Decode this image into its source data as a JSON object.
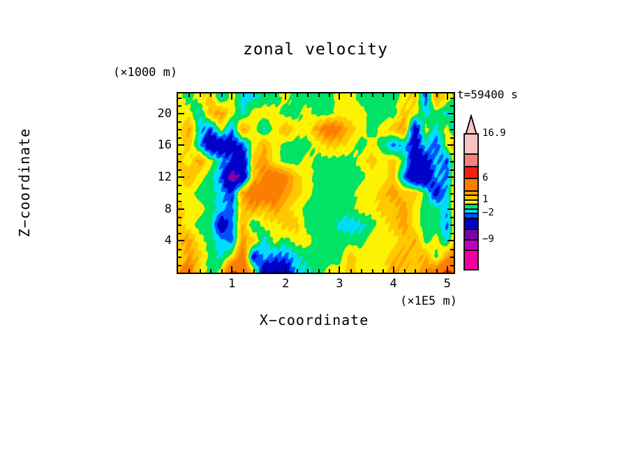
{
  "title": "zonal velocity",
  "time_label": "t=59400 s",
  "x_axis": {
    "label": "X−coordinate",
    "unit": "(×1E5 m)",
    "min": 0,
    "max": 5.12,
    "ticks": [
      1,
      2,
      3,
      4,
      5
    ],
    "tick_labels": [
      "1",
      "2",
      "3",
      "4",
      "5"
    ],
    "minor_step": 0.2
  },
  "z_axis": {
    "label": "Z−coordinate",
    "unit": "(×1000 m)",
    "min": 0,
    "max": 22.5,
    "ticks": [
      4,
      8,
      12,
      16,
      20
    ],
    "tick_labels": [
      "4",
      "8",
      "12",
      "16",
      "20"
    ],
    "minor_step": 1
  },
  "colorbar": {
    "tip_color": "#F9C3C3",
    "segments": [
      {
        "color": "#F9C3C3",
        "h": 29,
        "label": "16.9"
      },
      {
        "color": "#F5837D",
        "h": 18
      },
      {
        "color": "#FA1A10",
        "h": 17
      },
      {
        "color": "#FC7E00",
        "h": 18,
        "label": "6"
      },
      {
        "color": "#FFA000",
        "h": 6
      },
      {
        "color": "#FFC900",
        "h": 7
      },
      {
        "color": "#FCF302",
        "h": 6,
        "label": "1"
      },
      {
        "color": "#00E364",
        "h": 7
      },
      {
        "color": "#00DCFF",
        "h": 6
      },
      {
        "color": "#0050FF",
        "h": 7,
        "label": "−2"
      },
      {
        "color": "#0000C8",
        "h": 16
      },
      {
        "color": "#7D00A8",
        "h": 15
      },
      {
        "color": "#C000C0",
        "h": 15,
        "label": "−9"
      },
      {
        "color": "#F5009F",
        "h": 28
      }
    ]
  },
  "chart_data": {
    "type": "heatmap",
    "title": "zonal velocity",
    "xlabel": "X−coordinate (×1E5 m)",
    "ylabel": "Z−coordinate (×1000 m)",
    "annotation": "t=59400 s",
    "x_range_units": [
      0,
      5.2
    ],
    "z_range_units": [
      0,
      22
    ],
    "level_edges": [
      -12,
      -9,
      -6,
      -3,
      -2,
      -1,
      0,
      1,
      2,
      3,
      6,
      9,
      12,
      16.9
    ],
    "level_colors": [
      "#F5009F",
      "#C000C0",
      "#7D00A8",
      "#0000C8",
      "#0050FF",
      "#00DCFF",
      "#00E364",
      "#FCF302",
      "#FFC900",
      "#FFA000",
      "#FC7E00",
      "#FA1A10",
      "#F5837D",
      "#F9C3C3",
      "#F9C3C3"
    ],
    "value_max_label": 16.9,
    "texture": {
      "amp": 0.5,
      "k1x": 0.55,
      "k1y": 0.33,
      "k2x": 0.021,
      "k2y": 0.013,
      "phase": 1.3,
      "base": 0.25,
      "scale": 0.3
    },
    "grid_rows_top_to_bottom": [
      [
        0.5,
        -0.5,
        0.5,
        1.5,
        -1.3,
        0.5,
        -1.3,
        -1.3,
        -0.5,
        -0.5,
        0.5,
        -0.5,
        -0.5,
        -0.5,
        -0.5,
        0.5,
        0.5,
        -0.5,
        -0.5,
        -0.5,
        -0.5,
        0.5,
        1.5,
        -2.8,
        2.6,
        0.5,
        -0.5
      ],
      [
        0.5,
        0.5,
        -1.3,
        1.8,
        2.6,
        0.5,
        -1.3,
        0.5,
        0.5,
        0.5,
        -0.5,
        -0.5,
        0.5,
        -0.5,
        -0.5,
        0.5,
        0.5,
        0.5,
        -0.5,
        -0.5,
        -0.5,
        1.5,
        0.5,
        -1.3,
        -0.5,
        -1.3,
        -0.5
      ],
      [
        0.5,
        2.6,
        -1.3,
        -2.8,
        0.5,
        -2.4,
        2.6,
        0.5,
        -1.3,
        0.5,
        2.2,
        0.5,
        0.5,
        2.6,
        4.5,
        3.5,
        1.5,
        0.5,
        -0.5,
        0.5,
        1.5,
        2.6,
        -4.5,
        0.5,
        -1.3,
        0.5,
        -2.4
      ],
      [
        0.5,
        1.5,
        -1.6,
        -5,
        -5,
        -4,
        -2.8,
        0.5,
        2.2,
        0.5,
        -0.5,
        -0.5,
        -0.5,
        0.5,
        1.5,
        1.2,
        0.5,
        -0.5,
        0.5,
        -0.5,
        -2.4,
        -1.6,
        -4,
        -1.3,
        -2.8,
        0.5,
        2.6
      ],
      [
        1.5,
        0.5,
        2.6,
        0.5,
        -1.6,
        -2.8,
        -5,
        1.5,
        2.6,
        0.5,
        -0.5,
        -0.5,
        0.5,
        -0.5,
        -0.5,
        -0.5,
        -0.5,
        0.5,
        1.5,
        0.5,
        1.5,
        -0.5,
        -5,
        -4,
        -1.6,
        -2.8,
        2.6
      ],
      [
        0.5,
        2.2,
        0.5,
        -0.5,
        -2.4,
        -7.8,
        -5,
        1.5,
        3.5,
        4.5,
        3.5,
        1.5,
        0.5,
        -0.5,
        -0.5,
        -0.5,
        -0.5,
        -0.5,
        0.5,
        0.5,
        1.5,
        -2.4,
        -5.5,
        -5.5,
        -1.6,
        -2.4,
        2.6
      ],
      [
        0.5,
        0.5,
        -0.5,
        -0.5,
        -1.6,
        -3.2,
        2.6,
        4.5,
        5,
        4.5,
        2.6,
        1.5,
        0.5,
        -0.5,
        -0.5,
        -0.5,
        -0.5,
        0.5,
        0.5,
        1.5,
        2.6,
        1.5,
        1.5,
        -0.5,
        -4,
        -1.3,
        2.2
      ],
      [
        1.5,
        0.5,
        0.5,
        -0.5,
        -1.6,
        -2.4,
        1.5,
        2.6,
        1.5,
        2.6,
        1.5,
        0.5,
        -0.5,
        -0.5,
        -0.5,
        -0.5,
        -0.5,
        0.5,
        0.5,
        1.5,
        1.5,
        2.6,
        0.5,
        -0.5,
        -0.5,
        -1.6,
        2.6
      ],
      [
        1.5,
        0.5,
        -0.5,
        -0.5,
        -4.5,
        -2.4,
        2.2,
        -1.3,
        0.5,
        0.5,
        1.5,
        1.5,
        -0.5,
        -0.5,
        -0.5,
        -1.3,
        -1.6,
        -1.3,
        -0.5,
        0.5,
        1.5,
        2.6,
        0.5,
        -0.5,
        -0.5,
        -2.4,
        2.6
      ],
      [
        1.5,
        2.6,
        0.5,
        -0.5,
        -1.6,
        -2.4,
        2.6,
        1.5,
        -1.6,
        0.5,
        -0.5,
        0.5,
        0.5,
        -0.5,
        -0.5,
        -0.5,
        -0.5,
        -0.5,
        0.5,
        0.5,
        0.5,
        1.5,
        2.2,
        -0.5,
        0.5,
        -1.3,
        2.6
      ],
      [
        0.5,
        2.6,
        1.5,
        -0.5,
        -1.3,
        0.5,
        4.5,
        -4,
        -1.6,
        -2.4,
        -2.4,
        -1.3,
        -0.5,
        -0.5,
        -0.5,
        -0.5,
        1.5,
        0.5,
        0.5,
        0.5,
        1.5,
        2.2,
        1.5,
        2.2,
        -0.5,
        2.6,
        4.5
      ],
      [
        2.6,
        4.5,
        0.5,
        -0.5,
        0.5,
        7,
        5,
        1.5,
        -5,
        -5.5,
        -5,
        -1.3,
        -1.3,
        -0.5,
        0.5,
        0.5,
        1.5,
        0.5,
        0.5,
        0.5,
        2.6,
        1.5,
        1.5,
        2.6,
        4.5,
        7,
        5
      ]
    ]
  }
}
